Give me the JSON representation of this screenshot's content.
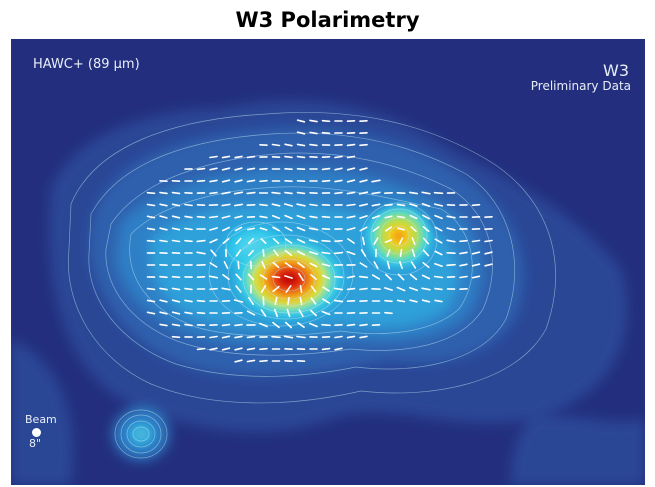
{
  "title": "W3 Polarimetry",
  "map": {
    "instrument_label": "HAWC+ (89 μm)",
    "target_label": "W3",
    "status_label": "Preliminary Data",
    "beam_label": "Beam",
    "beam_size_label": "8\""
  },
  "colors": {
    "background": "#232f7e",
    "vector": "#ffffff",
    "contour": "#bfe6f2"
  }
}
